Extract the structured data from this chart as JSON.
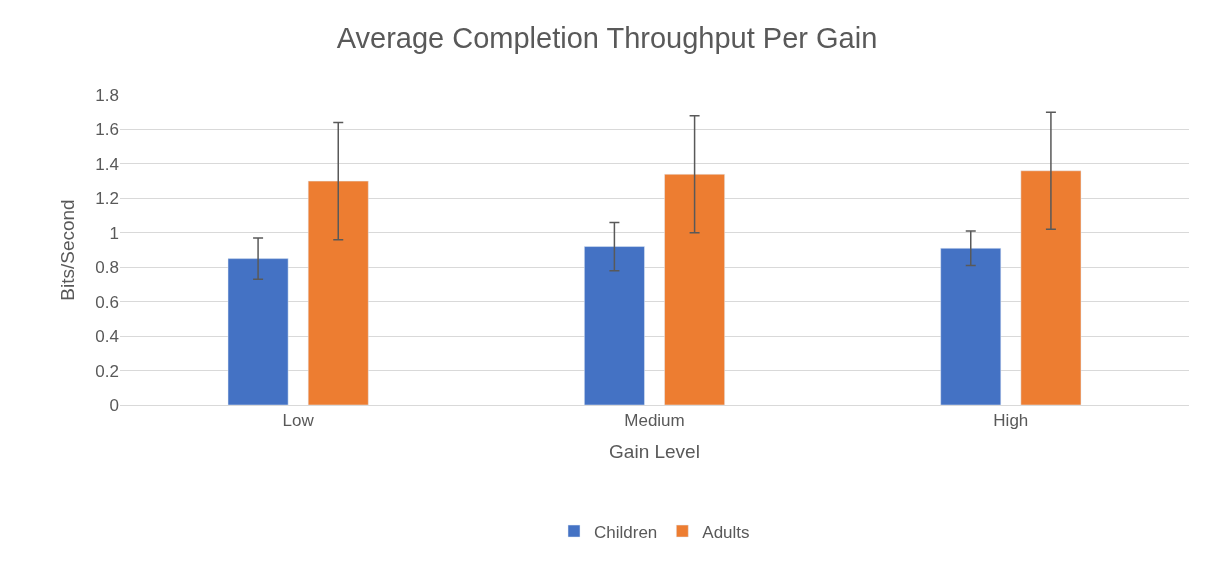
{
  "chart_data": {
    "type": "bar",
    "title": "Average Completion Throughput Per Gain",
    "xlabel": "Gain Level",
    "ylabel": "Bits/Second",
    "categories": [
      "Low",
      "Medium",
      "High"
    ],
    "series": [
      {
        "name": "Children",
        "color": "#4472c4",
        "values": [
          0.85,
          0.92,
          0.91
        ],
        "errors": [
          0.12,
          0.14,
          0.1
        ]
      },
      {
        "name": "Adults",
        "color": "#ed7d31",
        "values": [
          1.3,
          1.34,
          1.36
        ],
        "errors": [
          0.34,
          0.34,
          0.34
        ]
      }
    ],
    "ylim": [
      0,
      1.8
    ],
    "yticks": [
      0,
      0.2,
      0.4,
      0.6,
      0.8,
      1,
      1.2,
      1.4,
      1.6,
      1.8
    ],
    "grid": "y",
    "legend": "bottom"
  }
}
